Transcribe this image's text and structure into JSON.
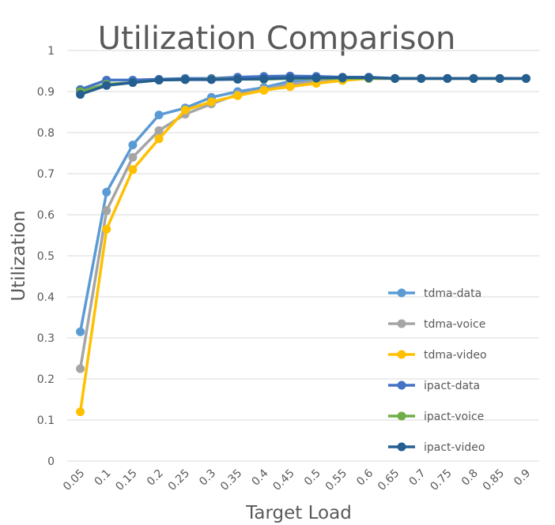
{
  "chart_data": {
    "type": "line",
    "title": "Utilization Comparison",
    "xlabel": "Target Load",
    "ylabel": "Utilization",
    "ylim": [
      0,
      1
    ],
    "yticks": [
      "0",
      "0.1",
      "0.2",
      "0.3",
      "0.4",
      "0.5",
      "0.6",
      "0.7",
      "0.8",
      "0.9",
      "1"
    ],
    "categories": [
      "0.05",
      "0.1",
      "0.15",
      "0.2",
      "0.25",
      "0.3",
      "0.35",
      "0.4",
      "0.45",
      "0.5",
      "0.55",
      "0.6",
      "0.65",
      "0.7",
      "0.75",
      "0.8",
      "0.85",
      "0.9"
    ],
    "grid": true,
    "legend_position": "right",
    "series": [
      {
        "name": "tdma-data",
        "color": "#5b9bd5",
        "values": [
          0.315,
          0.655,
          0.77,
          0.843,
          0.86,
          0.886,
          0.9,
          0.91,
          0.925,
          0.928,
          0.93,
          0.932,
          0.932,
          0.932,
          0.932,
          0.932,
          0.932,
          0.932
        ]
      },
      {
        "name": "tdma-voice",
        "color": "#a5a5a5",
        "values": [
          0.225,
          0.61,
          0.74,
          0.805,
          0.845,
          0.87,
          0.893,
          0.905,
          0.918,
          0.925,
          0.93,
          0.932,
          0.932,
          0.932,
          0.932,
          0.932,
          0.932,
          0.932
        ]
      },
      {
        "name": "tdma-video",
        "color": "#ffc000",
        "values": [
          0.12,
          0.565,
          0.71,
          0.785,
          0.855,
          0.875,
          0.89,
          0.903,
          0.912,
          0.92,
          0.927,
          0.932,
          0.932,
          0.932,
          0.932,
          0.932,
          0.932,
          0.932
        ]
      },
      {
        "name": "ipact-data",
        "color": "#4472c4",
        "values": [
          0.905,
          0.928,
          0.928,
          0.93,
          0.932,
          0.932,
          0.935,
          0.937,
          0.938,
          0.937,
          0.935,
          0.935,
          0.932,
          0.932,
          0.932,
          0.932,
          0.932,
          0.932
        ]
      },
      {
        "name": "ipact-voice",
        "color": "#70ad47",
        "values": [
          0.9,
          0.918,
          0.922,
          0.928,
          0.929,
          0.93,
          0.93,
          0.93,
          0.932,
          0.932,
          0.932,
          0.932,
          0.932,
          0.932,
          0.932,
          0.932,
          0.932,
          0.932
        ]
      },
      {
        "name": "ipact-video",
        "color": "#255e91",
        "values": [
          0.893,
          0.915,
          0.922,
          0.928,
          0.929,
          0.929,
          0.93,
          0.931,
          0.933,
          0.933,
          0.934,
          0.934,
          0.932,
          0.932,
          0.932,
          0.932,
          0.932,
          0.932
        ]
      }
    ]
  }
}
